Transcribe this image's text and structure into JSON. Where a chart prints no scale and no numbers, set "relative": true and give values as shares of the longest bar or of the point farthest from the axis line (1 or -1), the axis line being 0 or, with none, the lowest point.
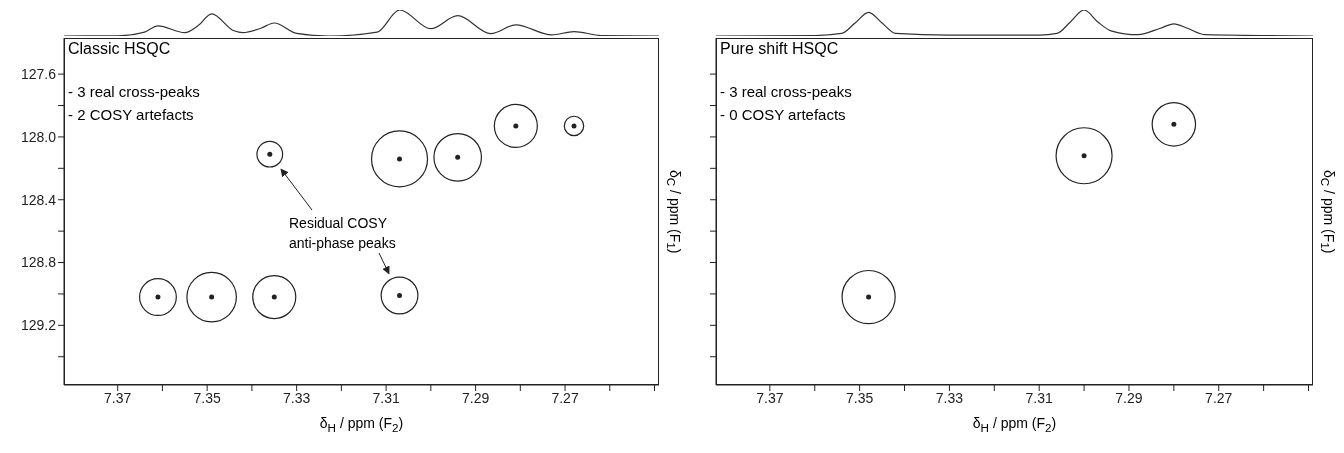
{
  "chart_data": [
    {
      "type": "line",
      "relative": true,
      "tick_labels": false,
      "xlim": [
        7.382,
        7.249
      ],
      "series": [
        {
          "color": "#333333",
          "x": [
            7.382,
            7.37,
            7.364,
            7.361,
            7.355,
            7.352,
            7.349,
            7.344,
            7.342,
            7.338,
            7.335,
            7.33,
            7.3227,
            7.312,
            7.307,
            7.3,
            7.294,
            7.2866,
            7.281,
            7.273,
            7.268,
            7.262,
            7.249
          ],
          "values": [
            0,
            0.01,
            0.15,
            0.39,
            0.13,
            0.4,
            0.85,
            0.2,
            0.13,
            0.3,
            0.5,
            0.1,
            0,
            0.15,
            1,
            0.28,
            0.78,
            0.09,
            0.43,
            0.04,
            0.17,
            0.02,
            0
          ]
        }
      ]
    },
    {
      "type": "bubble",
      "title": "Classic HSQC",
      "annotations": [
        "- 3 real cross-peaks\n- 2 COSY artefacts",
        "Residual COSY\nanti-phase peaks"
      ],
      "xlabel": "δ$_{H}$ / ppm (F$_{2}$)",
      "ylabel": "δ$_{C}$ / ppm (F$_{1}$)",
      "xlim": [
        7.382,
        7.249
      ],
      "ylim": [
        129.58,
        127.37
      ],
      "xticks": [
        7.37,
        {
          "value": 7.36,
          "label": null
        },
        7.35,
        {
          "value": 7.34,
          "label": null
        },
        7.33,
        {
          "value": 7.32,
          "label": null
        },
        7.31,
        {
          "value": 7.3,
          "label": null
        },
        7.29,
        {
          "value": 7.28,
          "label": null
        },
        7.27,
        {
          "value": 7.26,
          "label": null
        },
        {
          "value": 7.25,
          "label": null
        }
      ],
      "yticks": [
        {
          "value": 127.6,
          "label": "127.6"
        },
        {
          "value": 127.8,
          "label": null
        },
        {
          "value": 128,
          "label": "128.0"
        },
        {
          "value": 128.2,
          "label": null
        },
        {
          "value": 128.4,
          "label": "128.4"
        },
        {
          "value": 128.6,
          "label": null
        },
        {
          "value": 128.8,
          "label": "128.8"
        },
        {
          "value": 129,
          "label": null
        },
        {
          "value": 129.2,
          "label": "129.2"
        },
        {
          "value": 129.4,
          "label": null
        }
      ],
      "series": [
        {
          "color": "#222222",
          "x": [
            7.361,
            7.349,
            7.335,
            7.307,
            7.294,
            7.281,
            7.268
          ],
          "values": [
            129.02,
            129.02,
            129.02,
            128.14,
            128.13,
            127.93,
            127.93
          ],
          "sizes": [
            0.43,
            0.78,
            0.59,
            1,
            0.72,
            0.59,
            0.12
          ]
        },
        {
          "color": "#222222",
          "x": [
            7.336,
            7.307
          ],
          "values": [
            128.11,
            129.01
          ],
          "sizes": [
            0.21,
            0.43
          ]
        }
      ]
    },
    {
      "type": "line",
      "relative": true,
      "tick_labels": false,
      "xlim": [
        7.382,
        7.249
      ],
      "series": [
        {
          "color": "#333333",
          "x": [
            7.382,
            7.36,
            7.354,
            7.351,
            7.348,
            7.345,
            7.342,
            7.33,
            7.31,
            7.306,
            7.303,
            7.3,
            7.297,
            7.294,
            7.288,
            7.283,
            7.28,
            7.277,
            7.273,
            7.249
          ],
          "values": [
            0,
            0.02,
            0.1,
            0.5,
            0.91,
            0.5,
            0.1,
            0.03,
            0.03,
            0.1,
            0.55,
            1,
            0.55,
            0.2,
            0.05,
            0.3,
            0.47,
            0.3,
            0.05,
            0
          ]
        }
      ]
    },
    {
      "type": "bubble",
      "title": "Pure shift HSQC",
      "annotations": [
        "- 3 real cross-peaks\n- 0 COSY artefacts"
      ],
      "xlabel": "δ$_{H}$ / ppm (F$_{2}$)",
      "ylabel": "δ$_{C}$ / ppm (F$_{1}$)",
      "tick_labels": "x",
      "xlim": [
        7.382,
        7.249
      ],
      "ylim": [
        129.58,
        127.37
      ],
      "xticks": [
        7.37,
        {
          "value": 7.36,
          "label": null
        },
        7.35,
        {
          "value": 7.34,
          "label": null
        },
        7.33,
        {
          "value": 7.32,
          "label": null
        },
        7.31,
        {
          "value": 7.3,
          "label": null
        },
        7.29,
        {
          "value": 7.28,
          "label": null
        },
        7.27,
        {
          "value": 7.26,
          "label": null
        },
        {
          "value": 7.25,
          "label": null
        }
      ],
      "yticks": [
        {
          "value": 127.6,
          "label": null
        },
        {
          "value": 127.8,
          "label": null
        },
        {
          "value": 128,
          "label": null
        },
        {
          "value": 128.2,
          "label": null
        },
        {
          "value": 128.4,
          "label": null
        },
        {
          "value": 128.6,
          "label": null
        },
        {
          "value": 128.8,
          "label": null
        },
        {
          "value": 129,
          "label": null
        },
        {
          "value": 129.2,
          "label": null
        },
        {
          "value": 129.4,
          "label": null
        }
      ],
      "series": [
        {
          "color": "#222222",
          "x": [
            7.348,
            7.3,
            7.28
          ],
          "values": [
            129.02,
            128.12,
            127.92
          ],
          "sizes": [
            0.9,
            1,
            0.6
          ]
        }
      ]
    }
  ]
}
